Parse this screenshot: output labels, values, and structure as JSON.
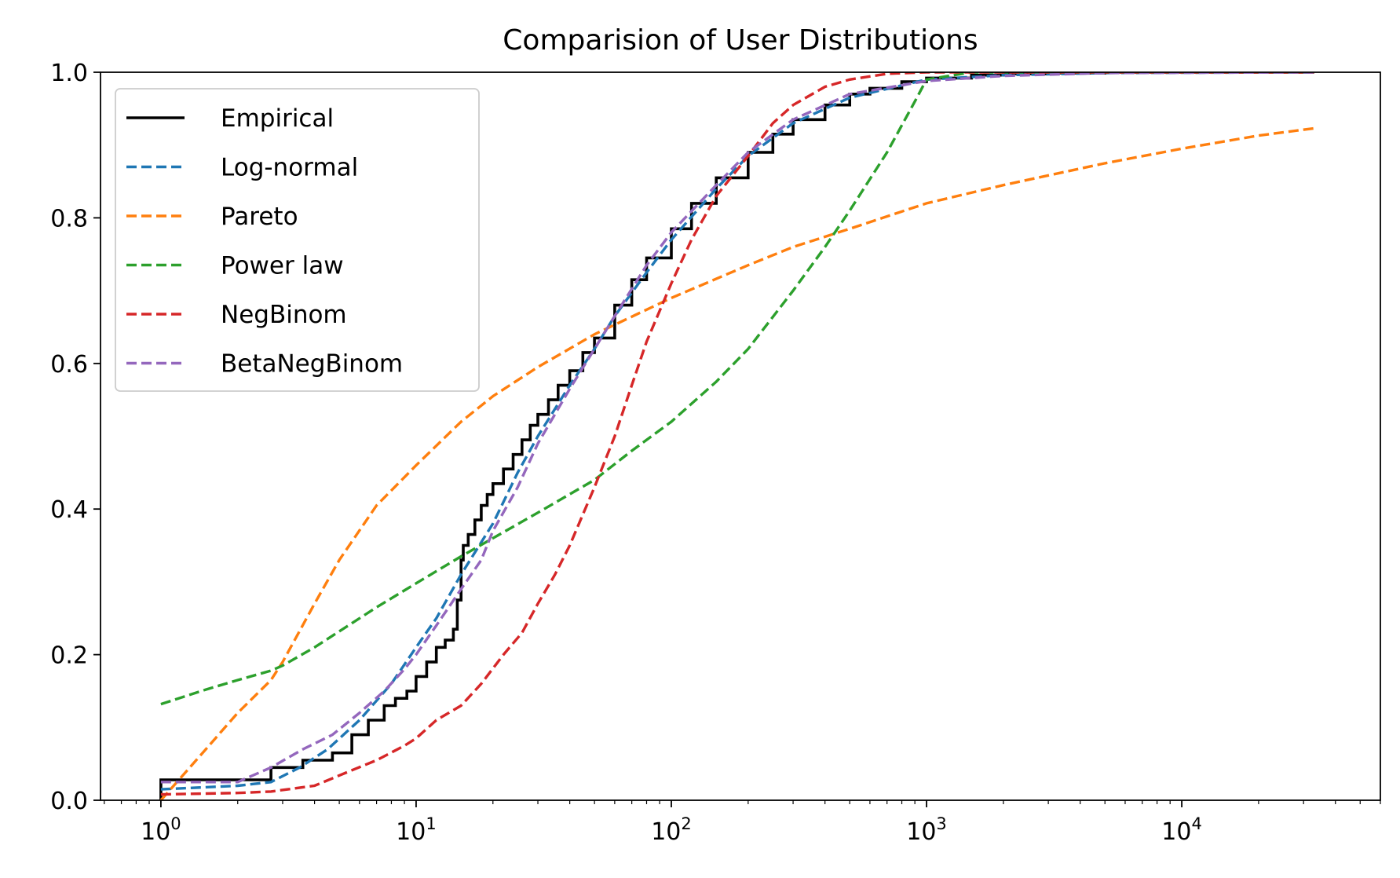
{
  "chart_data": {
    "type": "line",
    "title": "Comparision of User Distributions",
    "xlabel": "",
    "ylabel": "",
    "xscale": "log",
    "xlim": [
      0.58,
      60000
    ],
    "ylim": [
      0,
      1.0
    ],
    "x_ticks": [
      {
        "value": 1,
        "base": "10",
        "exp": "0"
      },
      {
        "value": 10,
        "base": "10",
        "exp": "1"
      },
      {
        "value": 100,
        "base": "10",
        "exp": "2"
      },
      {
        "value": 1000,
        "base": "10",
        "exp": "3"
      },
      {
        "value": 10000,
        "base": "10",
        "exp": "4"
      }
    ],
    "y_ticks": [
      {
        "value": 0.0,
        "label": "0.0"
      },
      {
        "value": 0.2,
        "label": "0.2"
      },
      {
        "value": 0.4,
        "label": "0.4"
      },
      {
        "value": 0.6,
        "label": "0.6"
      },
      {
        "value": 0.8,
        "label": "0.8"
      },
      {
        "value": 1.0,
        "label": "1.0"
      }
    ],
    "grid": false,
    "legend_position": "top-left",
    "series": [
      {
        "name": "Empirical",
        "style": "solid",
        "step": true,
        "color": "#000000",
        "x": [
          1,
          1,
          2.7,
          2.7,
          3.6,
          4.7,
          5.6,
          6.5,
          7.5,
          8.3,
          9.2,
          10,
          11,
          12,
          13,
          14,
          14.5,
          15,
          15.3,
          16,
          17,
          18,
          19,
          20,
          22,
          24,
          26,
          28,
          30,
          33,
          36,
          40,
          45,
          50,
          60,
          70,
          80,
          100,
          120,
          150,
          200,
          250,
          300,
          400,
          500,
          600,
          800,
          1000,
          1500,
          2000,
          3000,
          5000,
          10000,
          33000
        ],
        "y": [
          0,
          0.028,
          0.028,
          0.045,
          0.055,
          0.065,
          0.09,
          0.11,
          0.13,
          0.14,
          0.15,
          0.17,
          0.19,
          0.21,
          0.22,
          0.235,
          0.275,
          0.33,
          0.35,
          0.365,
          0.385,
          0.405,
          0.42,
          0.435,
          0.455,
          0.475,
          0.495,
          0.515,
          0.53,
          0.55,
          0.57,
          0.59,
          0.615,
          0.635,
          0.68,
          0.715,
          0.745,
          0.785,
          0.82,
          0.855,
          0.89,
          0.915,
          0.935,
          0.955,
          0.97,
          0.978,
          0.987,
          0.992,
          0.996,
          0.998,
          0.999,
          1.0,
          1.0,
          1.0
        ]
      },
      {
        "name": "Log-normal",
        "style": "dashed",
        "color": "#1f77b4",
        "x": [
          1,
          2,
          2.7,
          3.5,
          4.5,
          6,
          8,
          10,
          12,
          15,
          20,
          25,
          30,
          40,
          50,
          60,
          80,
          100,
          150,
          200,
          300,
          500,
          1000,
          2000,
          5000,
          33000
        ],
        "y": [
          0.015,
          0.02,
          0.025,
          0.045,
          0.07,
          0.11,
          0.16,
          0.21,
          0.25,
          0.31,
          0.38,
          0.45,
          0.5,
          0.57,
          0.62,
          0.665,
          0.725,
          0.77,
          0.84,
          0.885,
          0.93,
          0.965,
          0.99,
          0.996,
          0.999,
          1.0
        ]
      },
      {
        "name": "Pareto",
        "style": "dashed",
        "color": "#ff7f0e",
        "x": [
          1,
          1.5,
          2,
          2.7,
          3,
          4,
          5,
          7,
          10,
          15,
          20,
          30,
          50,
          100,
          200,
          300,
          500,
          1000,
          2000,
          5000,
          10000,
          20000,
          33000
        ],
        "y": [
          0.0,
          0.07,
          0.12,
          0.165,
          0.19,
          0.27,
          0.33,
          0.405,
          0.46,
          0.52,
          0.555,
          0.595,
          0.64,
          0.69,
          0.735,
          0.76,
          0.785,
          0.82,
          0.845,
          0.875,
          0.895,
          0.913,
          0.923
        ]
      },
      {
        "name": "Power law",
        "style": "dashed",
        "color": "#2ca02c",
        "x": [
          1,
          1.5,
          2,
          2.7,
          3,
          4,
          5,
          7,
          10,
          15,
          20,
          30,
          50,
          70,
          100,
          150,
          200,
          300,
          400,
          500,
          700,
          900,
          1000,
          1500,
          2000,
          5000,
          33000
        ],
        "y": [
          0.132,
          0.152,
          0.165,
          0.178,
          0.185,
          0.21,
          0.232,
          0.265,
          0.298,
          0.335,
          0.36,
          0.395,
          0.44,
          0.48,
          0.52,
          0.575,
          0.62,
          0.7,
          0.76,
          0.81,
          0.89,
          0.96,
          0.99,
          1.0,
          1.0,
          1.0,
          1.0
        ]
      },
      {
        "name": "NegBinom",
        "style": "dashed",
        "color": "#d62728",
        "x": [
          1,
          2,
          2.7,
          4,
          5.5,
          7,
          9,
          10,
          12,
          15,
          18,
          22,
          26,
          30,
          35,
          40,
          50,
          60,
          70,
          80,
          100,
          120,
          150,
          200,
          250,
          300,
          400,
          500,
          700,
          1000,
          5000,
          33000
        ],
        "y": [
          0.008,
          0.01,
          0.012,
          0.02,
          0.04,
          0.055,
          0.075,
          0.085,
          0.11,
          0.13,
          0.16,
          0.2,
          0.23,
          0.27,
          0.31,
          0.35,
          0.43,
          0.5,
          0.57,
          0.63,
          0.71,
          0.77,
          0.83,
          0.885,
          0.93,
          0.955,
          0.98,
          0.99,
          0.998,
          1.0,
          1.0,
          1.0
        ]
      },
      {
        "name": "BetaNegBinom",
        "style": "dashed",
        "color": "#9467bd",
        "x": [
          1,
          2,
          2.7,
          3.6,
          4.7,
          6,
          7.5,
          9,
          10,
          12,
          15,
          18,
          20,
          25,
          30,
          40,
          50,
          60,
          80,
          100,
          150,
          200,
          300,
          500,
          1000,
          2000,
          5000,
          33000
        ],
        "y": [
          0.025,
          0.025,
          0.045,
          0.07,
          0.09,
          0.12,
          0.15,
          0.18,
          0.2,
          0.24,
          0.29,
          0.33,
          0.37,
          0.43,
          0.49,
          0.565,
          0.62,
          0.665,
          0.735,
          0.78,
          0.845,
          0.89,
          0.935,
          0.97,
          0.988,
          0.995,
          0.999,
          1.0
        ]
      }
    ]
  }
}
